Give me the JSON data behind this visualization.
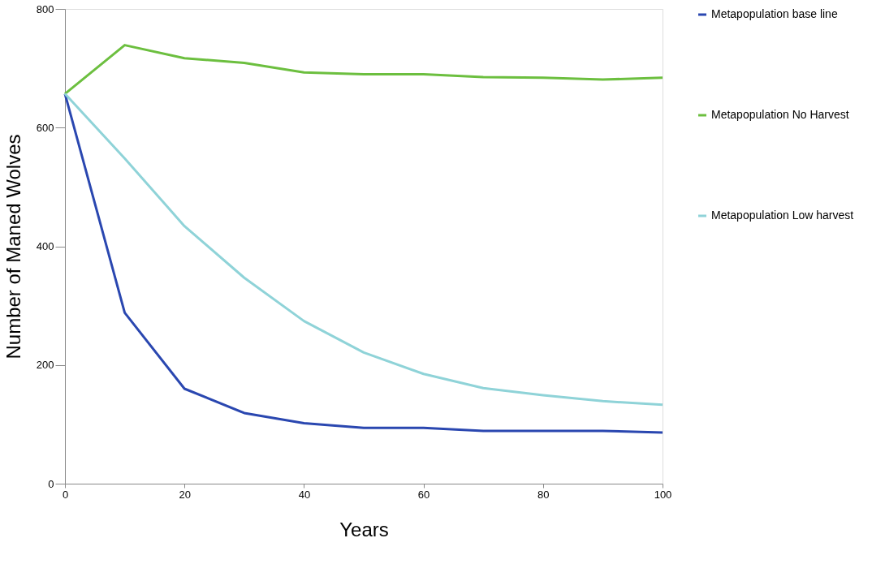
{
  "chart_data": {
    "type": "line",
    "xlabel": "Years",
    "ylabel": "Number of Maned Wolves",
    "xlim": [
      0,
      100
    ],
    "xticks": [
      0,
      20,
      40,
      60,
      80,
      100
    ],
    "ylim": [
      0,
      800
    ],
    "yticks": [
      0,
      200,
      400,
      600,
      800
    ],
    "x": [
      0,
      10,
      20,
      30,
      40,
      50,
      60,
      70,
      80,
      90,
      100
    ],
    "series": [
      {
        "name": "Metapopulation base line",
        "color": "#2a47b0",
        "values": [
          657,
          288,
          160,
          119,
          102,
          94,
          94,
          89,
          89,
          89,
          86
        ]
      },
      {
        "name": "Metapopulation No Harvest",
        "color": "#6cbf3f",
        "values": [
          657,
          739,
          717,
          709,
          693,
          690,
          690,
          685,
          684,
          681,
          684
        ]
      },
      {
        "name": "Metapopulation  Low harvest",
        "color": "#8fd3d8",
        "values": [
          657,
          548,
          434,
          347,
          274,
          221,
          185,
          161,
          149,
          139,
          133
        ]
      }
    ],
    "grid": false,
    "legend": "right",
    "marker": "none",
    "line_style": "solid"
  }
}
